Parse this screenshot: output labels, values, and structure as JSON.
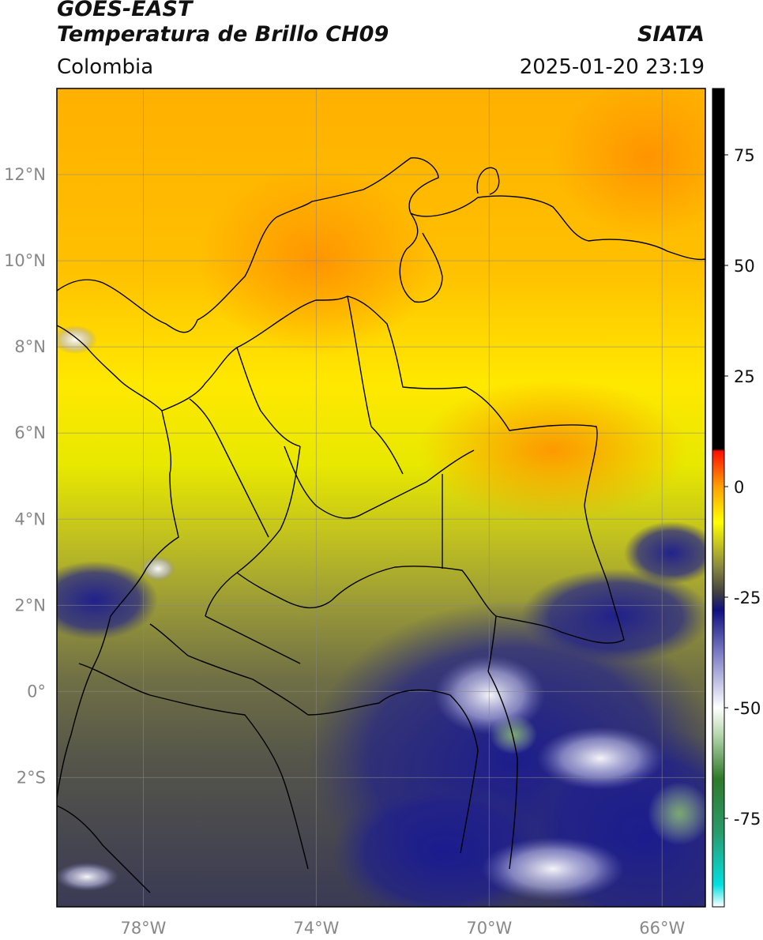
{
  "header": {
    "satellite": "GOES-EAST",
    "product": "Temperatura de Brillo CH09",
    "region": "Colombia",
    "organization": "SIATA",
    "timestamp": "2025-01-20 23:19"
  },
  "map": {
    "lon_range": [
      -80,
      -65
    ],
    "lat_range": [
      -5,
      14
    ],
    "lat_ticks": [
      {
        "value": 12,
        "label": "12°N"
      },
      {
        "value": 10,
        "label": "10°N"
      },
      {
        "value": 8,
        "label": "8°N"
      },
      {
        "value": 6,
        "label": "6°N"
      },
      {
        "value": 4,
        "label": "4°N"
      },
      {
        "value": 2,
        "label": "2°N"
      },
      {
        "value": 0,
        "label": "0°"
      },
      {
        "value": -2,
        "label": "2°S"
      }
    ],
    "lon_ticks": [
      {
        "value": -78,
        "label": "78°W"
      },
      {
        "value": -74,
        "label": "74°W"
      },
      {
        "value": -70,
        "label": "70°W"
      },
      {
        "value": -66,
        "label": "66°W"
      }
    ],
    "grid": true
  },
  "colorbar": {
    "range": [
      -95,
      90
    ],
    "ticks": [
      {
        "value": 75,
        "label": "75"
      },
      {
        "value": 50,
        "label": "50"
      },
      {
        "value": 25,
        "label": "25"
      },
      {
        "value": 0,
        "label": "0"
      },
      {
        "value": -25,
        "label": "-25"
      },
      {
        "value": -50,
        "label": "-50"
      },
      {
        "value": -75,
        "label": "-75"
      }
    ],
    "stops": [
      {
        "value": -95,
        "color": "#ffffff"
      },
      {
        "value": -90,
        "color": "#00e0e0"
      },
      {
        "value": -78,
        "color": "#2a9a6a"
      },
      {
        "value": -66,
        "color": "#2f7a2a"
      },
      {
        "value": -56,
        "color": "#b8d8b0"
      },
      {
        "value": -50,
        "color": "#ffffff"
      },
      {
        "value": -38,
        "color": "#8080c8"
      },
      {
        "value": -28,
        "color": "#101080"
      },
      {
        "value": -24,
        "color": "#404040"
      },
      {
        "value": -18,
        "color": "#8a8a40"
      },
      {
        "value": -8,
        "color": "#ffff00"
      },
      {
        "value": 0,
        "color": "#ffa000"
      },
      {
        "value": 8,
        "color": "#ff1000"
      },
      {
        "value": 8.5,
        "color": "#000000"
      },
      {
        "value": 90,
        "color": "#000000"
      }
    ]
  }
}
